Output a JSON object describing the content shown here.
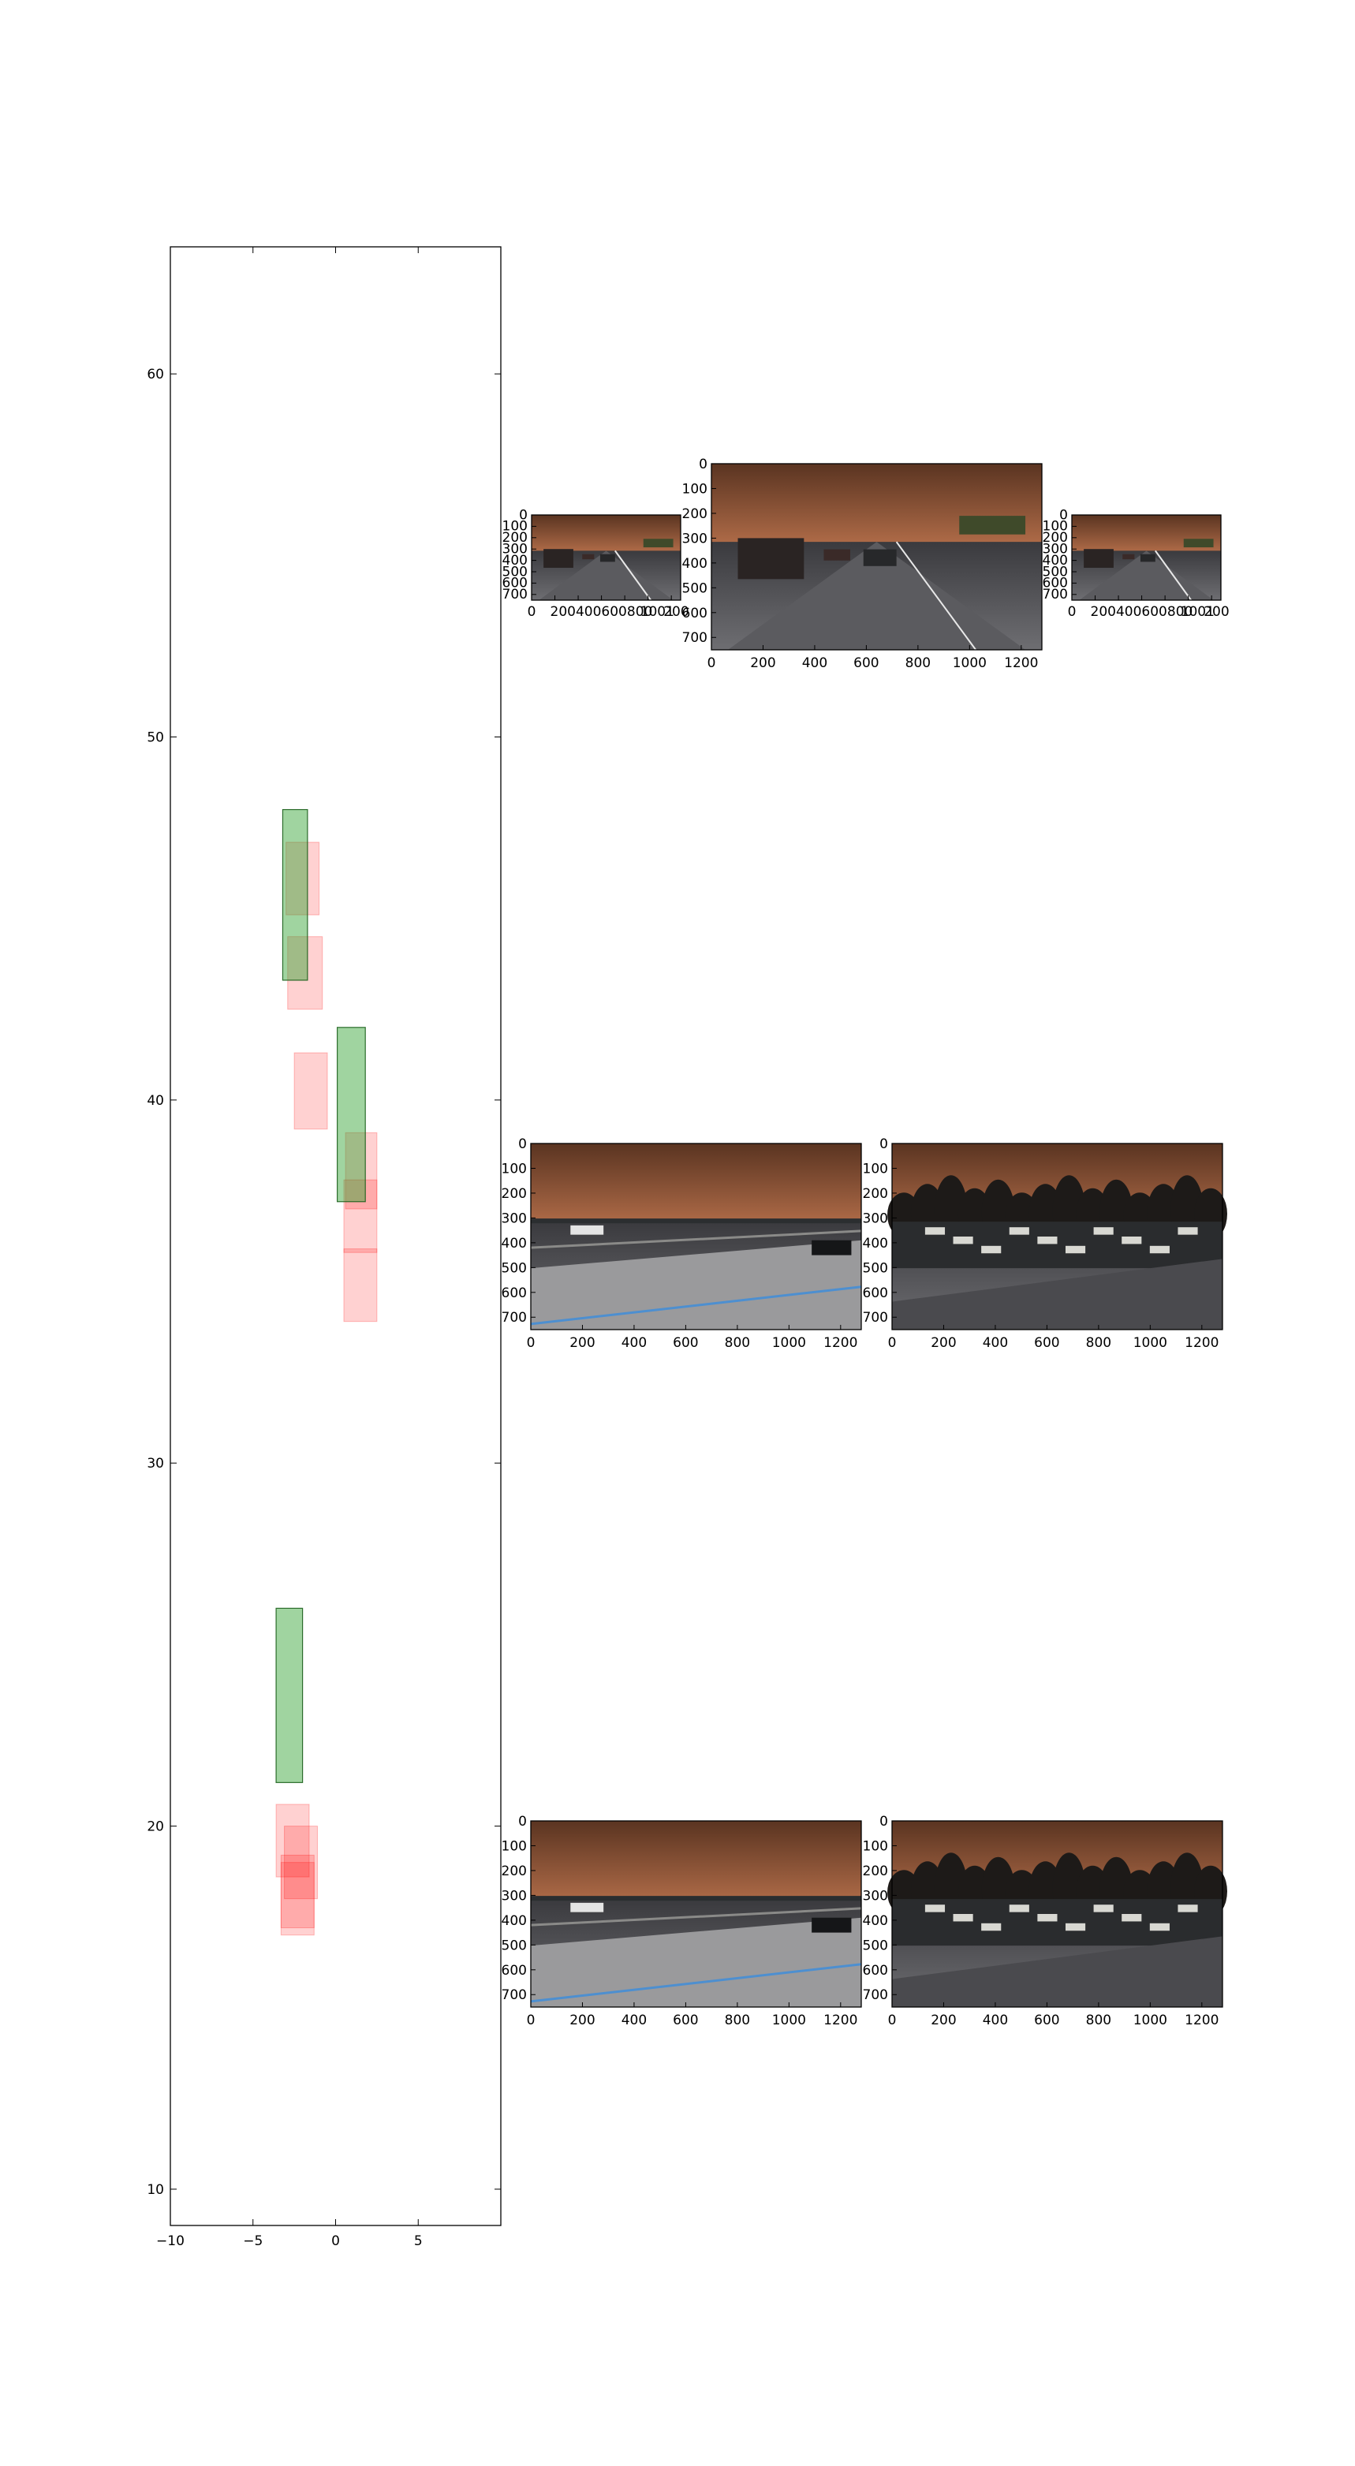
{
  "chart_data": [
    {
      "type": "bird-eye-boxes",
      "xlim": [
        -10,
        10
      ],
      "ylim": [
        9,
        63.5
      ],
      "xticks": [
        -10,
        -5,
        0,
        5
      ],
      "xtick_labels": [
        "−10",
        "−5",
        "0",
        "5"
      ],
      "yticks": [
        10,
        20,
        30,
        40,
        50,
        60
      ],
      "ytick_labels": [
        "10",
        "20",
        "30",
        "40",
        "50",
        "60"
      ],
      "grid": false,
      "colors": {
        "ground_truth": "#2ca02c",
        "prediction": "#ff0000"
      },
      "ground_truth_boxes": [
        {
          "x": [
            -3.2,
            -1.7
          ],
          "y": [
            43.3,
            48.0
          ]
        },
        {
          "x": [
            0.1,
            1.8
          ],
          "y": [
            37.2,
            42.0
          ]
        },
        {
          "x": [
            -3.6,
            -2.0
          ],
          "y": [
            21.2,
            26.0
          ]
        }
      ],
      "prediction_boxes": [
        {
          "x": [
            -3.0,
            -1.0
          ],
          "y": [
            45.1,
            47.1
          ]
        },
        {
          "x": [
            -2.9,
            -0.8
          ],
          "y": [
            42.5,
            44.5
          ]
        },
        {
          "x": [
            -2.5,
            -0.5
          ],
          "y": [
            39.2,
            41.3
          ]
        },
        {
          "x": [
            0.6,
            2.5
          ],
          "y": [
            37.0,
            39.1
          ]
        },
        {
          "x": [
            0.5,
            2.5
          ],
          "y": [
            35.8,
            37.8
          ]
        },
        {
          "x": [
            0.5,
            2.5
          ],
          "y": [
            33.9,
            35.9
          ]
        },
        {
          "x": [
            -3.6,
            -1.6
          ],
          "y": [
            18.6,
            20.6
          ]
        },
        {
          "x": [
            -3.1,
            -1.1
          ],
          "y": [
            18.0,
            20.0
          ]
        },
        {
          "x": [
            -3.3,
            -1.3
          ],
          "y": [
            17.2,
            19.2
          ]
        },
        {
          "x": [
            -3.3,
            -1.3
          ],
          "y": [
            17.0,
            19.0
          ]
        }
      ]
    },
    {
      "type": "image-panels",
      "panels": [
        {
          "id": "row1-left",
          "ylim": [
            0,
            750
          ],
          "xlim": [
            0,
            1280
          ],
          "yticks": [
            0,
            100,
            200,
            300,
            400,
            500,
            600,
            700
          ],
          "xticks": [
            0,
            200,
            400,
            600,
            800,
            1000,
            1200
          ],
          "xtick_labels": [
            "0",
            "200400600800",
            "",
            "",
            "",
            "1001",
            "200"
          ],
          "scene": "dusk-highway",
          "boxes": []
        },
        {
          "id": "row1-center",
          "ylim": [
            0,
            750
          ],
          "xlim": [
            0,
            1280
          ],
          "yticks": [
            0,
            100,
            200,
            300,
            400,
            500,
            600,
            700
          ],
          "xticks": [
            0,
            200,
            400,
            600,
            800,
            1000,
            1200
          ],
          "xtick_labels": [
            "0",
            "200",
            "400",
            "600",
            "800",
            "1000",
            "1200"
          ],
          "scene": "dusk-highway-front",
          "boxes": []
        },
        {
          "id": "row1-right",
          "ylim": [
            0,
            750
          ],
          "xlim": [
            0,
            1280
          ],
          "yticks": [
            0,
            100,
            200,
            300,
            400,
            500,
            600,
            700
          ],
          "xticks": [
            0,
            200,
            400,
            600,
            800,
            1000,
            1200
          ],
          "xtick_labels": [
            "0",
            "200400600800",
            "",
            "",
            "",
            "1001",
            "200"
          ],
          "scene": "dusk-highway",
          "boxes": []
        },
        {
          "id": "row2-left",
          "ylim": [
            0,
            750
          ],
          "xlim": [
            0,
            1280
          ],
          "yticks": [
            0,
            100,
            200,
            300,
            400,
            500,
            600,
            700
          ],
          "xticks": [
            0,
            200,
            400,
            600,
            800,
            1000,
            1200
          ],
          "xtick_labels": [
            "0",
            "200",
            "400",
            "600",
            "800",
            "1000",
            "1200"
          ],
          "scene": "dusk-side-road",
          "boxes": []
        },
        {
          "id": "row2-right",
          "ylim": [
            0,
            750
          ],
          "xlim": [
            0,
            1280
          ],
          "yticks": [
            0,
            100,
            200,
            300,
            400,
            500,
            600,
            700
          ],
          "xticks": [
            0,
            200,
            400,
            600,
            800,
            1000,
            1200
          ],
          "xtick_labels": [
            "0",
            "200",
            "400",
            "600",
            "800",
            "1000",
            "1200"
          ],
          "scene": "dusk-trees-lot",
          "boxes": []
        },
        {
          "id": "row3-left",
          "ylim": [
            0,
            750
          ],
          "xlim": [
            0,
            1280
          ],
          "yticks": [
            0,
            100,
            200,
            300,
            400,
            500,
            600,
            700
          ],
          "xticks": [
            0,
            200,
            400,
            600,
            800,
            1000,
            1200
          ],
          "xtick_labels": [
            "0",
            "200",
            "400",
            "600",
            "800",
            "1000",
            "1200"
          ],
          "scene": "dusk-rear-road",
          "boxes": []
        },
        {
          "id": "row3-right",
          "ylim": [
            0,
            750
          ],
          "xlim": [
            0,
            1280
          ],
          "yticks": [
            0,
            100,
            200,
            300,
            400,
            500,
            600,
            700
          ],
          "xticks": [
            0,
            200,
            400,
            600,
            800,
            1000,
            1200
          ],
          "xtick_labels": [
            "0",
            "200",
            "400",
            "600",
            "800",
            "1000",
            "1200"
          ],
          "scene": "dusk-parking-lot",
          "boxes": []
        }
      ]
    }
  ]
}
